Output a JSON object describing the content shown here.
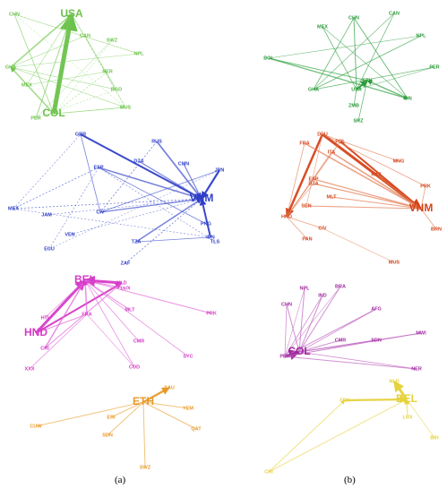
{
  "captions": {
    "left": "(a)",
    "right": "(b)"
  },
  "panels": [
    {
      "id": "a1",
      "color": "#6cc24a",
      "edge_color": "#7fcf5f",
      "nodes": [
        {
          "id": "USA",
          "label": "USA",
          "big": true
        },
        {
          "id": "COL",
          "label": "COL",
          "big": true
        },
        {
          "id": "GHA",
          "label": "GHA",
          "big": false
        },
        {
          "id": "CHN",
          "label": "CHN",
          "big": false
        },
        {
          "id": "NER",
          "label": "NER",
          "big": false
        },
        {
          "id": "PER",
          "label": "PER",
          "big": false
        },
        {
          "id": "BGD",
          "label": "BGD",
          "big": false
        },
        {
          "id": "MUS",
          "label": "MUS",
          "big": false
        },
        {
          "id": "NPL",
          "label": "NPL",
          "big": false
        },
        {
          "id": "SWZ",
          "label": "SWZ",
          "big": false
        },
        {
          "id": "CAN",
          "label": "CAN",
          "big": false
        },
        {
          "id": "MEX",
          "label": "MEX",
          "big": false
        }
      ]
    },
    {
      "id": "b1",
      "color": "#2e9a3c",
      "edge_color": "#3aa54a",
      "nodes": [
        {
          "id": "USA",
          "label": "USA",
          "big": false
        },
        {
          "id": "ETH",
          "label": "ETH",
          "big": false
        },
        {
          "id": "IDN",
          "label": "IDN",
          "big": false
        },
        {
          "id": "GHA",
          "label": "GHA",
          "big": false
        },
        {
          "id": "CHN",
          "label": "CHN",
          "big": false
        },
        {
          "id": "NPL",
          "label": "NPL",
          "big": false
        },
        {
          "id": "SRZ",
          "label": "SRZ",
          "big": false
        },
        {
          "id": "BOL",
          "label": "BOL",
          "big": false
        },
        {
          "id": "CAN",
          "label": "CAN",
          "big": false
        },
        {
          "id": "MEX",
          "label": "MEX",
          "big": false
        },
        {
          "id": "ZMB",
          "label": "ZMB",
          "big": false
        },
        {
          "id": "PER",
          "label": "PER",
          "big": false
        }
      ]
    },
    {
      "id": "a2",
      "color": "#2f3fc7",
      "edge_color": "#4a58cf",
      "nodes": [
        {
          "id": "VNM",
          "label": "VNM",
          "big": true
        },
        {
          "id": "GBR",
          "label": "GBR",
          "big": false
        },
        {
          "id": "RUS",
          "label": "RUS",
          "big": false
        },
        {
          "id": "JPN",
          "label": "JPN",
          "big": false
        },
        {
          "id": "IDN",
          "label": "IDN",
          "big": false
        },
        {
          "id": "ESP",
          "label": "ESP",
          "big": false
        },
        {
          "id": "DZA",
          "label": "DZA",
          "big": false
        },
        {
          "id": "CMN",
          "label": "CMN",
          "big": false
        },
        {
          "id": "MEX",
          "label": "MEX",
          "big": false
        },
        {
          "id": "CIV",
          "label": "CIV",
          "big": false
        },
        {
          "id": "TZA",
          "label": "TZA",
          "big": false
        },
        {
          "id": "ZAF",
          "label": "ZAF",
          "big": false
        },
        {
          "id": "ECU",
          "label": "ECU",
          "big": false
        },
        {
          "id": "TLS",
          "label": "TLS",
          "big": false
        },
        {
          "id": "JAM",
          "label": "JAM",
          "big": false
        },
        {
          "id": "VEN",
          "label": "VEN",
          "big": false
        },
        {
          "id": "PNG",
          "label": "PNG",
          "big": false
        }
      ]
    },
    {
      "id": "b2",
      "color": "#d4441a",
      "edge_color": "#e4825a",
      "nodes": [
        {
          "id": "DEU",
          "label": "DEU",
          "big": false
        },
        {
          "id": "VNM",
          "label": "VNM",
          "big": true
        },
        {
          "id": "HND",
          "label": "HND",
          "big": false
        },
        {
          "id": "POL",
          "label": "POL",
          "big": false
        },
        {
          "id": "FRA",
          "label": "FRA",
          "big": false
        },
        {
          "id": "ITA",
          "label": "ITA",
          "big": false
        },
        {
          "id": "ESP",
          "label": "ESP",
          "big": false
        },
        {
          "id": "DZA",
          "label": "DZA",
          "big": false
        },
        {
          "id": "SEN",
          "label": "SEN",
          "big": false
        },
        {
          "id": "MLT",
          "label": "MLT",
          "big": false
        },
        {
          "id": "CIV",
          "label": "CIV",
          "big": false
        },
        {
          "id": "PAN",
          "label": "PAN",
          "big": false
        },
        {
          "id": "MUS",
          "label": "MUS",
          "big": false
        },
        {
          "id": "BRN",
          "label": "BRN",
          "big": false
        },
        {
          "id": "PRK",
          "label": "PRK",
          "big": false
        },
        {
          "id": "MNG",
          "label": "MNG",
          "big": false
        },
        {
          "id": "KAZ",
          "label": "KAZ",
          "big": false
        }
      ]
    },
    {
      "id": "a3",
      "color": "#d63cc8",
      "edge_color": "#e36ad9",
      "nodes": [
        {
          "id": "BEL",
          "label": "BEL",
          "big": true
        },
        {
          "id": "NLD",
          "label": "NLD",
          "big": false
        },
        {
          "id": "HND",
          "label": "HND",
          "big": true
        },
        {
          "id": "FRA",
          "label": "FRA",
          "big": false
        },
        {
          "id": "CRI",
          "label": "CRI",
          "big": false
        },
        {
          "id": "MLT",
          "label": "MLT",
          "big": false
        },
        {
          "id": "LUX",
          "label": "LUX",
          "big": false
        },
        {
          "id": "PRK",
          "label": "PRK",
          "big": false
        },
        {
          "id": "SYC",
          "label": "SYC",
          "big": false
        },
        {
          "id": "COD",
          "label": "COD",
          "big": false
        },
        {
          "id": "XXX",
          "label": "XXX",
          "big": false
        },
        {
          "id": "HTI",
          "label": "HTI",
          "big": false
        },
        {
          "id": "CMR",
          "label": "CMR",
          "big": false
        }
      ]
    },
    {
      "id": "b3",
      "color": "#a02aa0",
      "edge_color": "#c16ac1",
      "nodes": [
        {
          "id": "COL",
          "label": "COL",
          "big": true
        },
        {
          "id": "PER",
          "label": "PER",
          "big": false
        },
        {
          "id": "CHN",
          "label": "CHN",
          "big": false
        },
        {
          "id": "NPL",
          "label": "NPL",
          "big": false
        },
        {
          "id": "IND",
          "label": "IND",
          "big": false
        },
        {
          "id": "BRA",
          "label": "BRA",
          "big": false
        },
        {
          "id": "SDN",
          "label": "SDN",
          "big": false
        },
        {
          "id": "MWI",
          "label": "MWI",
          "big": false
        },
        {
          "id": "CMR",
          "label": "CMR",
          "big": false
        },
        {
          "id": "AFG",
          "label": "AFG",
          "big": false
        },
        {
          "id": "NER",
          "label": "NER",
          "big": false
        }
      ]
    },
    {
      "id": "a4",
      "color": "#e89a2a",
      "edge_color": "#eeb04f",
      "nodes": [
        {
          "id": "ETH",
          "label": "ETH",
          "big": true
        },
        {
          "id": "SAU",
          "label": "SAU",
          "big": false
        },
        {
          "id": "YEM",
          "label": "YEM",
          "big": false
        },
        {
          "id": "QAT",
          "label": "QAT",
          "big": false
        },
        {
          "id": "ERI",
          "label": "ERI",
          "big": false
        },
        {
          "id": "CUW",
          "label": "CUW",
          "big": false
        },
        {
          "id": "SDN",
          "label": "SDN",
          "big": false
        },
        {
          "id": "SWZ",
          "label": "SWZ",
          "big": false
        }
      ]
    },
    {
      "id": "b4",
      "color": "#e6d23a",
      "edge_color": "#ece077",
      "nodes": [
        {
          "id": "BEL",
          "label": "BEL",
          "big": true
        },
        {
          "id": "NLD",
          "label": "NLD",
          "big": false
        },
        {
          "id": "FRA",
          "label": "FRA",
          "big": false
        },
        {
          "id": "LUX",
          "label": "LUX",
          "big": false
        },
        {
          "id": "BIH",
          "label": "BIH",
          "big": false
        },
        {
          "id": "CRI",
          "label": "CRI",
          "big": false
        }
      ]
    }
  ]
}
